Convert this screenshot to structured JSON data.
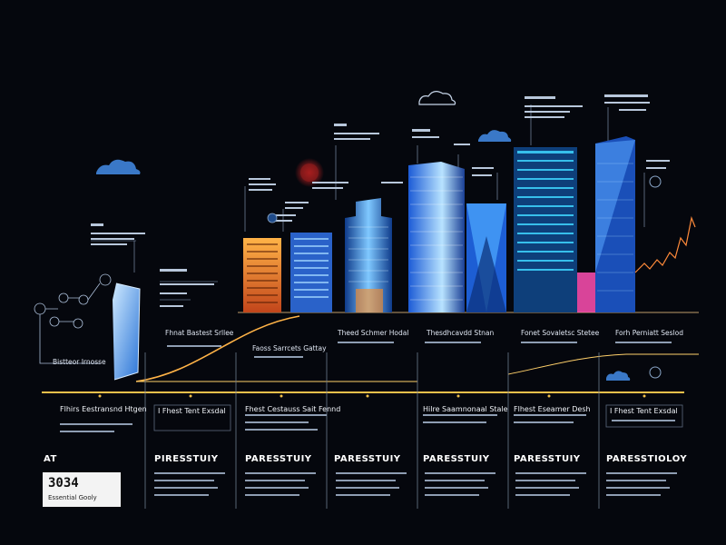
{
  "headline": "AT",
  "badge": {
    "number": "3034",
    "subtitle": "Essential Gooly"
  },
  "colors": {
    "background": "#05070d",
    "timeline": "#f2c04a",
    "glow_orange": "#ff8a1f",
    "glow_blue": "#2c8cff",
    "pink": "#ff3fa3"
  },
  "upper_labels": [
    "Fhnat Bastest Srllee",
    "Faoss Sarrcets Gattay",
    "Theed Schmer Hodal",
    "Thesdhcavdd Stnan",
    "Fonet Sovaletsc Stetee",
    "Forh Perniatt Seslod"
  ],
  "columns": [
    {
      "title": "Flhirs Eestransnd Htgen",
      "heading": ""
    },
    {
      "title": "I Fhest Tent Exsdal",
      "heading": "PIRESSTUIY"
    },
    {
      "title": "Fhest Cestauss Sait Fennd",
      "heading": "PARESSTUIY"
    },
    {
      "title": "",
      "heading": "PARESSTUIY"
    },
    {
      "title": "Hilre Saamnonaal Stale",
      "heading": "PARESSTUIY"
    },
    {
      "title": "Flhest Eseamer Desh",
      "heading": "PARESSTUIY"
    },
    {
      "title": "I Fhest Tent Exsdal",
      "heading": "PARESSTIOLOY"
    }
  ],
  "misc_label": "Bistteor Irnosse"
}
